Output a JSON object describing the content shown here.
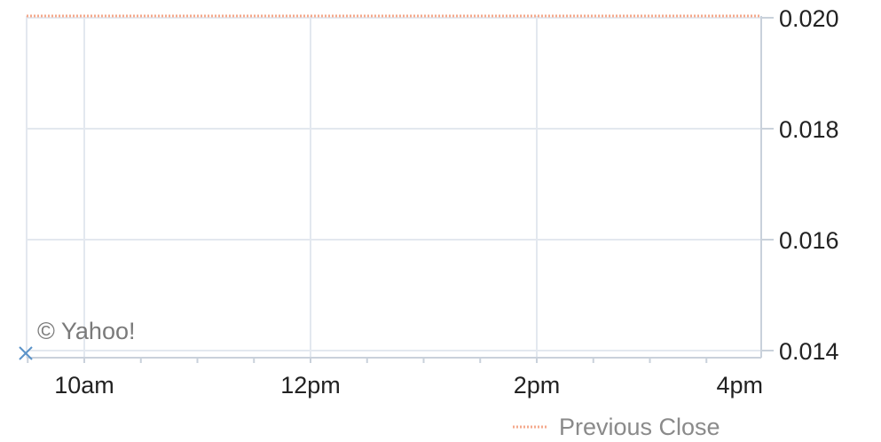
{
  "chart_data": {
    "type": "line",
    "title": "",
    "xlabel": "",
    "ylabel": "",
    "x_ticks": [
      "10am",
      "12pm",
      "2pm",
      "4pm"
    ],
    "y_ticks": [
      "0.020",
      "0.018",
      "0.016",
      "0.014"
    ],
    "y_tick_values": [
      0.02,
      0.018,
      0.016,
      0.014
    ],
    "ylim": [
      0.014,
      0.02
    ],
    "grid": true,
    "previous_close": 0.02,
    "series": [],
    "legend": [
      {
        "label": "Previous Close",
        "style": "dotted",
        "color": "#f4a98c"
      }
    ],
    "legend_position": "bottom-right",
    "credit": "© Yahoo!",
    "colors": {
      "grid": "#e3e8ef",
      "axis": "#c9d1db",
      "previous_close": "#f4a98c",
      "marker": "#5b93c9"
    }
  }
}
